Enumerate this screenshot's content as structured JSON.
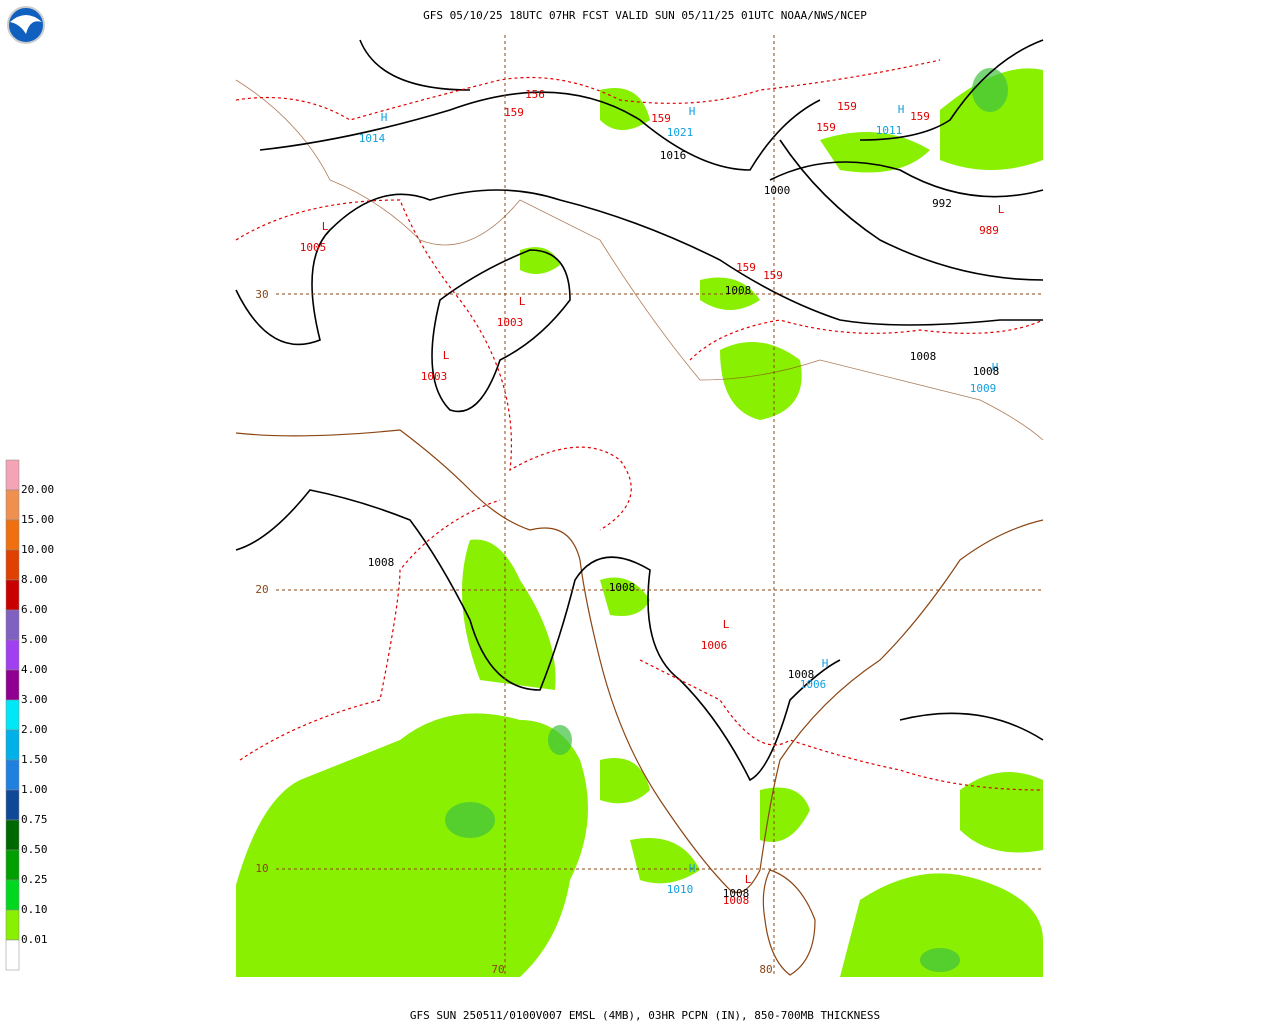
{
  "header": {
    "title": "GFS 05/10/25 18UTC 07HR FCST VALID SUN 05/11/25 01UTC NOAA/NWS/NCEP"
  },
  "footer": {
    "caption": "GFS SUN 250511/0100V007 EMSL (4MB), 03HR PCPN (IN), 850-700MB THICKNESS"
  },
  "legend": {
    "labels": [
      "20.00",
      "15.00",
      "10.00",
      "8.00",
      "6.00",
      "5.00",
      "4.00",
      "3.00",
      "2.00",
      "1.50",
      "1.00",
      "0.75",
      "0.50",
      "0.25",
      "0.10",
      "0.01"
    ],
    "colors": [
      "#f4a4b4",
      "#f09050",
      "#f07010",
      "#e04000",
      "#c80000",
      "#8060c0",
      "#a040f0",
      "#900090",
      "#00e8f8",
      "#00b0e8",
      "#2080e0",
      "#104898",
      "#006800",
      "#00a000",
      "#00d820",
      "#88f000",
      "#ffffff"
    ]
  },
  "grid_labels": {
    "latitudes": [
      "30",
      "20",
      "10"
    ],
    "longitudes": [
      "70",
      "80"
    ]
  },
  "pressure_centers": [
    {
      "symbol": "H",
      "value": "1014"
    },
    {
      "symbol": "H",
      "value": "1021"
    },
    {
      "symbol": "H",
      "value": "1011"
    },
    {
      "symbol": "L",
      "value": "989"
    },
    {
      "symbol": "L",
      "value": "1005"
    },
    {
      "symbol": "L",
      "value": "1003"
    },
    {
      "symbol": "L",
      "value": "1003"
    },
    {
      "symbol": "L",
      "value": "1006"
    },
    {
      "symbol": "H",
      "value": "1006"
    },
    {
      "symbol": "H",
      "value": "1009"
    },
    {
      "symbol": "H",
      "value": "1010"
    },
    {
      "symbol": "L",
      "value": "1008"
    }
  ],
  "isobar_labels": [
    "1016",
    "1000",
    "992",
    "1008",
    "1008",
    "1008",
    "1008",
    "1008",
    "1008",
    "1008"
  ],
  "thickness_labels": [
    "156",
    "159",
    "159",
    "159",
    "159",
    "159",
    "159",
    "159"
  ]
}
